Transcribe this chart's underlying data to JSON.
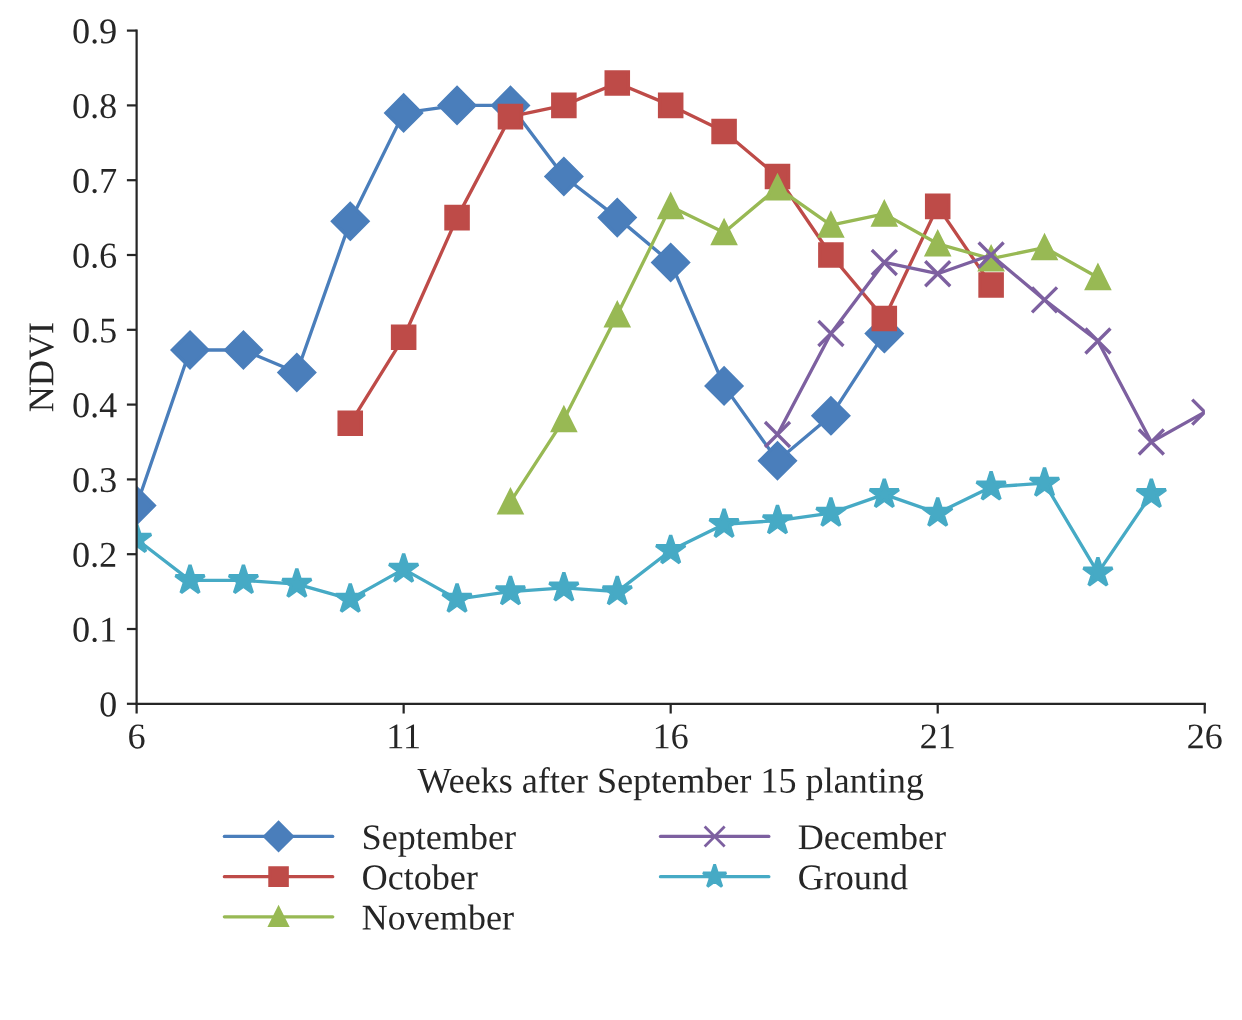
{
  "chart_data": {
    "type": "line",
    "xlabel": "Weeks after September 15 planting",
    "ylabel": "NDVI",
    "xlim": [
      6,
      26
    ],
    "xticks": [
      6,
      11,
      16,
      21,
      26
    ],
    "ylim": [
      0,
      0.9
    ],
    "yticks": [
      0,
      0.1,
      0.2,
      0.3,
      0.4,
      0.5,
      0.6,
      0.7,
      0.8,
      0.9
    ],
    "grid": false,
    "legend": "bottom",
    "series": [
      {
        "name": "September",
        "color": "#4a7ebb",
        "marker": "diamond",
        "x": [
          6,
          7,
          8,
          9,
          10,
          11,
          12,
          13,
          14,
          15,
          16,
          17,
          18,
          19,
          20
        ],
        "values": [
          0.265,
          0.473,
          0.473,
          0.443,
          0.645,
          0.79,
          0.8,
          0.8,
          0.705,
          0.65,
          0.59,
          0.425,
          0.325,
          0.385,
          0.495
        ]
      },
      {
        "name": "October",
        "color": "#be4b48",
        "marker": "square",
        "x": [
          10,
          11,
          12,
          13,
          14,
          15,
          16,
          17,
          18,
          19,
          20,
          21,
          22
        ],
        "values": [
          0.375,
          0.49,
          0.65,
          0.785,
          0.8,
          0.83,
          0.8,
          0.765,
          0.705,
          0.6,
          0.515,
          0.665,
          0.56
        ]
      },
      {
        "name": "November",
        "color": "#98b954",
        "marker": "triangle",
        "x": [
          13,
          14,
          15,
          16,
          17,
          18,
          19,
          20,
          21,
          22,
          23,
          24
        ],
        "values": [
          0.27,
          0.38,
          0.52,
          0.665,
          0.63,
          0.69,
          0.64,
          0.655,
          0.615,
          0.595,
          0.61,
          0.57
        ]
      },
      {
        "name": "December",
        "color": "#7d60a0",
        "marker": "cross",
        "x": [
          18,
          19,
          20,
          21,
          22,
          23,
          24,
          25,
          26
        ],
        "values": [
          0.36,
          0.495,
          0.59,
          0.575,
          0.6,
          0.54,
          0.485,
          0.35,
          0.39
        ]
      },
      {
        "name": "Ground",
        "color": "#46aac5",
        "marker": "star",
        "x": [
          6,
          7,
          8,
          9,
          10,
          11,
          12,
          13,
          14,
          15,
          16,
          17,
          18,
          19,
          20,
          21,
          22,
          23,
          24,
          25
        ],
        "values": [
          0.22,
          0.165,
          0.165,
          0.16,
          0.14,
          0.18,
          0.14,
          0.15,
          0.155,
          0.15,
          0.205,
          0.24,
          0.245,
          0.255,
          0.28,
          0.255,
          0.29,
          0.295,
          0.175,
          0.28
        ]
      }
    ]
  }
}
